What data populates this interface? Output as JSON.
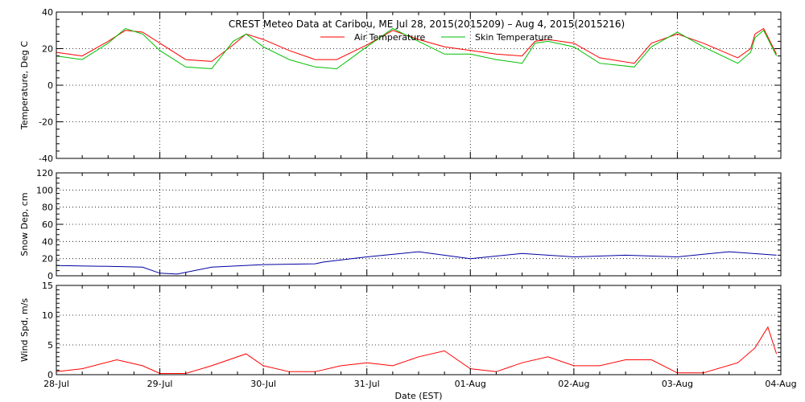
{
  "chart_data": {
    "type": "line",
    "title": "CREST Meteo Data at Caribou, ME   Jul 28, 2015(2015209) – Aug  4, 2015(2015216)",
    "xlabel": "Date (EST)",
    "x_tick_labels": [
      "28-Jul",
      "29-Jul",
      "30-Jul",
      "31-Jul",
      "01-Aug",
      "02-Aug",
      "03-Aug",
      "04-Aug"
    ],
    "grid": true,
    "panels": [
      {
        "ylabel": "Temperature, Deg C",
        "ylim": [
          -40,
          40
        ],
        "y_ticks": [
          -40,
          -20,
          0,
          20,
          40
        ],
        "legend": "top-center",
        "series": [
          {
            "name": "Air Temperature",
            "color": "#ff0000",
            "x": [
              "2015-07-28 00:00",
              "2015-07-28 06:00",
              "2015-07-28 12:00",
              "2015-07-28 16:00",
              "2015-07-28 20:00",
              "2015-07-29 00:00",
              "2015-07-29 06:00",
              "2015-07-29 12:00",
              "2015-07-29 17:00",
              "2015-07-29 20:00",
              "2015-07-30 00:00",
              "2015-07-30 06:00",
              "2015-07-30 12:00",
              "2015-07-30 17:00",
              "2015-07-31 00:00",
              "2015-07-31 06:00",
              "2015-07-31 12:00",
              "2015-07-31 18:00",
              "2015-08-01 00:00",
              "2015-08-01 06:00",
              "2015-08-01 12:00",
              "2015-08-01 15:00",
              "2015-08-01 18:00",
              "2015-08-02 00:00",
              "2015-08-02 06:00",
              "2015-08-02 14:00",
              "2015-08-02 18:00",
              "2015-08-03 00:00",
              "2015-08-03 06:00",
              "2015-08-03 14:00",
              "2015-08-03 17:00",
              "2015-08-03 18:00",
              "2015-08-03 20:00",
              "2015-08-03 23:00"
            ],
            "values": [
              18,
              16,
              24,
              30,
              29,
              23,
              14,
              13,
              22,
              28,
              25,
              19,
              14,
              14,
              22,
              30,
              25,
              21,
              19,
              17,
              16,
              24,
              25,
              23,
              15,
              12,
              23,
              28,
              23,
              15,
              20,
              28,
              31,
              17
            ]
          },
          {
            "name": "Skin Temperature",
            "color": "#00c000",
            "x": [
              "2015-07-28 00:00",
              "2015-07-28 06:00",
              "2015-07-28 12:00",
              "2015-07-28 16:00",
              "2015-07-28 20:00",
              "2015-07-29 00:00",
              "2015-07-29 06:00",
              "2015-07-29 12:00",
              "2015-07-29 17:00",
              "2015-07-29 20:00",
              "2015-07-30 00:00",
              "2015-07-30 06:00",
              "2015-07-30 12:00",
              "2015-07-30 17:00",
              "2015-07-31 00:00",
              "2015-07-31 06:00",
              "2015-07-31 12:00",
              "2015-07-31 18:00",
              "2015-08-01 00:00",
              "2015-08-01 06:00",
              "2015-08-01 12:00",
              "2015-08-01 15:00",
              "2015-08-01 18:00",
              "2015-08-02 00:00",
              "2015-08-02 06:00",
              "2015-08-02 14:00",
              "2015-08-02 18:00",
              "2015-08-03 00:00",
              "2015-08-03 06:00",
              "2015-08-03 14:00",
              "2015-08-03 17:00",
              "2015-08-03 18:00",
              "2015-08-03 20:00",
              "2015-08-03 23:00"
            ],
            "values": [
              16,
              14,
              23,
              31,
              28,
              19,
              10,
              9,
              24,
              28,
              21,
              14,
              10,
              9,
              21,
              31,
              24,
              17,
              17,
              14,
              12,
              23,
              24,
              21,
              12,
              10,
              21,
              29,
              21,
              12,
              18,
              26,
              30,
              16
            ]
          }
        ]
      },
      {
        "ylabel": "Snow Dep, cm",
        "ylim": [
          0,
          120
        ],
        "y_ticks": [
          0,
          20,
          40,
          60,
          80,
          100,
          120
        ],
        "series": [
          {
            "color": "#0000a0",
            "x": [
              "2015-07-28 00:00",
              "2015-07-28 12:00",
              "2015-07-28 20:00",
              "2015-07-29 00:00",
              "2015-07-29 04:00",
              "2015-07-29 12:00",
              "2015-07-30 00:00",
              "2015-07-30 12:00",
              "2015-07-30 14:00",
              "2015-07-31 00:00",
              "2015-07-31 12:00",
              "2015-08-01 00:00",
              "2015-08-01 12:00",
              "2015-08-02 00:00",
              "2015-08-02 12:00",
              "2015-08-03 00:00",
              "2015-08-03 12:00",
              "2015-08-03 23:00"
            ],
            "values": [
              12,
              11,
              10,
              3,
              2,
              10,
              13,
              14,
              16,
              22,
              28,
              20,
              26,
              22,
              24,
              22,
              28,
              24
            ]
          }
        ]
      },
      {
        "ylabel": "Wind Spd, m/s",
        "ylim": [
          0,
          15
        ],
        "y_ticks": [
          0,
          5,
          10,
          15
        ],
        "series": [
          {
            "color": "#ff0000",
            "x": [
              "2015-07-28 00:00",
              "2015-07-28 06:00",
              "2015-07-28 14:00",
              "2015-07-28 20:00",
              "2015-07-29 00:00",
              "2015-07-29 06:00",
              "2015-07-29 12:00",
              "2015-07-29 20:00",
              "2015-07-30 00:00",
              "2015-07-30 06:00",
              "2015-07-30 12:00",
              "2015-07-30 18:00",
              "2015-07-31 00:00",
              "2015-07-31 06:00",
              "2015-07-31 12:00",
              "2015-07-31 18:00",
              "2015-08-01 00:00",
              "2015-08-01 06:00",
              "2015-08-01 12:00",
              "2015-08-01 18:00",
              "2015-08-02 00:00",
              "2015-08-02 06:00",
              "2015-08-02 12:00",
              "2015-08-02 18:00",
              "2015-08-03 00:00",
              "2015-08-03 06:00",
              "2015-08-03 14:00",
              "2015-08-03 18:00",
              "2015-08-03 21:00",
              "2015-08-03 23:00"
            ],
            "values": [
              0.5,
              1.0,
              2.5,
              1.5,
              0.2,
              0.2,
              1.5,
              3.5,
              1.5,
              0.5,
              0.5,
              1.5,
              2.0,
              1.5,
              3.0,
              4.0,
              1.0,
              0.5,
              2.0,
              3.0,
              1.5,
              1.5,
              2.5,
              2.5,
              0.3,
              0.3,
              2.0,
              4.5,
              8.0,
              3.5
            ]
          }
        ]
      }
    ]
  }
}
